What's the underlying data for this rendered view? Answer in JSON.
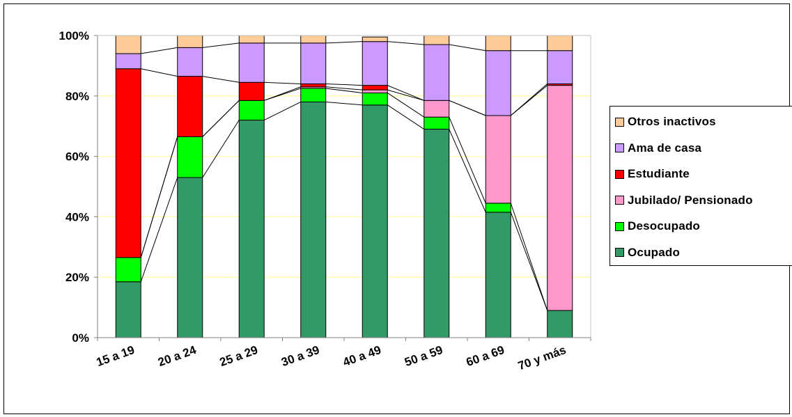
{
  "chart_data": {
    "type": "bar",
    "stacked": true,
    "percent": true,
    "title": "",
    "xlabel": "",
    "ylabel": "",
    "ylim": [
      0,
      100
    ],
    "yticks": [
      "0%",
      "20%",
      "40%",
      "60%",
      "80%",
      "100%"
    ],
    "categories": [
      "15 a 19",
      "20 a 24",
      "25 a 29",
      "30 a 39",
      "40 a 49",
      "50 a 59",
      "60 a 69",
      "70 y más"
    ],
    "series": [
      {
        "name": "Ocupado",
        "color": "#339966",
        "values": [
          18.5,
          53.0,
          72.0,
          78.0,
          77.0,
          69.0,
          41.5,
          9.0
        ]
      },
      {
        "name": "Desocupado",
        "color": "#00ff00",
        "values": [
          8.0,
          13.5,
          6.5,
          4.5,
          4.0,
          4.0,
          3.0,
          0.0
        ]
      },
      {
        "name": "Jubilado/ Pensionado",
        "color": "#ff99cc",
        "values": [
          0.0,
          0.0,
          0.0,
          0.5,
          1.0,
          5.5,
          29.0,
          74.5
        ]
      },
      {
        "name": "Estudiante",
        "color": "#ff0000",
        "values": [
          62.5,
          20.0,
          6.0,
          1.0,
          1.5,
          0.0,
          0.0,
          0.5
        ]
      },
      {
        "name": "Ama de casa",
        "color": "#cc99ff",
        "values": [
          5.0,
          9.5,
          13.0,
          13.5,
          14.5,
          18.5,
          21.5,
          11.0
        ]
      },
      {
        "name": "Otros inactivos",
        "color": "#ffcc99",
        "values": [
          6.0,
          4.0,
          2.5,
          2.5,
          1.5,
          3.0,
          5.0,
          5.0
        ]
      }
    ],
    "grid": true,
    "legend_position": "right",
    "series_lines": true
  }
}
